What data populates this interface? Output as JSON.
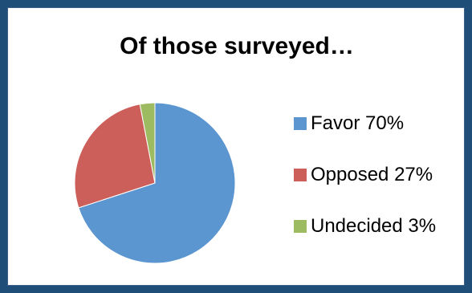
{
  "chart_data": {
    "type": "pie",
    "title": "Of those surveyed…",
    "categories": [
      "Favor",
      "Opposed",
      "Undecided"
    ],
    "values": [
      70,
      27,
      3
    ],
    "legend_labels": [
      "Favor 70%",
      "Opposed 27%",
      "Undecided 3%"
    ],
    "colors": [
      "#5b96d0",
      "#cd5f5a",
      "#9dbb61"
    ],
    "legend_position": "right",
    "start_angle": "12 o'clock",
    "direction": "clockwise"
  }
}
